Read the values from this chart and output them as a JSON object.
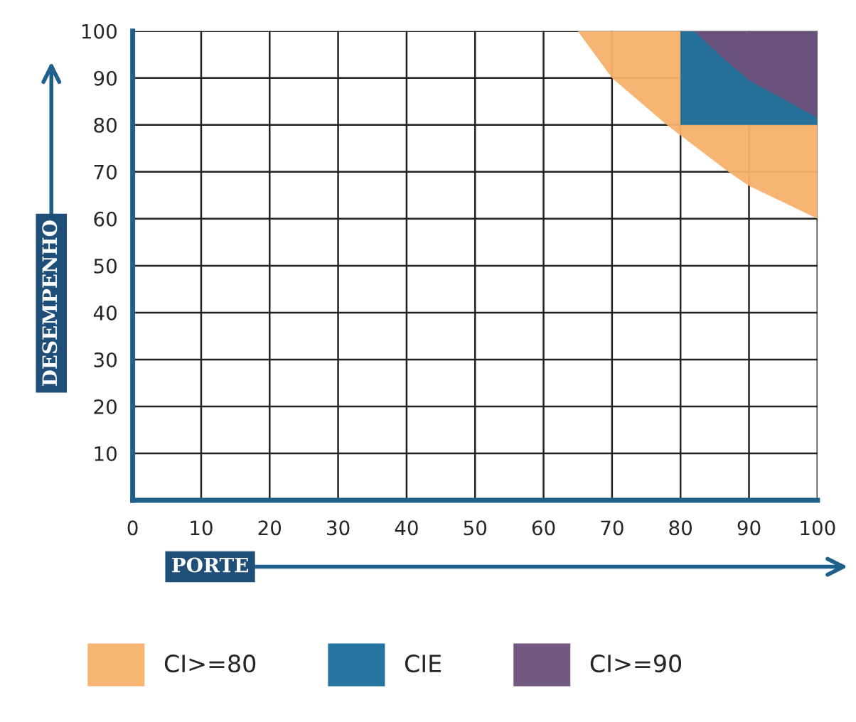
{
  "chart_data": {
    "type": "area",
    "xlabel": "PORTE",
    "ylabel": "DESEMPENHO",
    "xlim": [
      0,
      100
    ],
    "ylim": [
      0,
      100
    ],
    "xticks": [
      {
        "value": 0,
        "label": "0"
      },
      10,
      20,
      30,
      40,
      50,
      60,
      70,
      80,
      90,
      100
    ],
    "yticks": [
      {
        "value": 0,
        "label": null
      },
      10,
      20,
      30,
      40,
      50,
      60,
      70,
      80,
      90,
      100
    ],
    "grid": true,
    "legend": "bottom",
    "series": [
      {
        "name": "CI>=80",
        "color": "#f8b06c",
        "x": [
          65,
          70,
          78,
          87,
          90,
          100,
          100
        ],
        "values": [
          100,
          90,
          80,
          70,
          67,
          60,
          100
        ]
      },
      {
        "name": "CIE",
        "color": "#1a6e9c",
        "x": [
          80,
          100,
          100,
          80
        ],
        "values": [
          80,
          80,
          100,
          100
        ]
      },
      {
        "name": "CI>=90",
        "color": "#6b507a",
        "x": [
          82,
          86,
          90,
          100,
          100
        ],
        "values": [
          100,
          94.5,
          89.5,
          81.5,
          100
        ]
      }
    ]
  }
}
